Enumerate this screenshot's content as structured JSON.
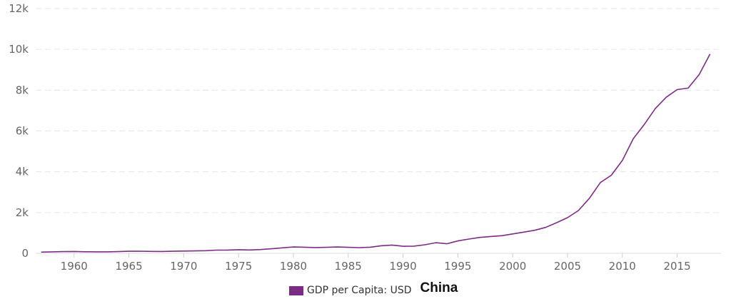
{
  "chart_data": {
    "type": "line",
    "title": "",
    "xlabel": "",
    "ylabel": "",
    "xlim": [
      1956.5,
      2019
    ],
    "ylim": [
      0,
      12000
    ],
    "x_ticks": [
      1960,
      1965,
      1970,
      1975,
      1980,
      1985,
      1990,
      1995,
      2000,
      2005,
      2010,
      2015
    ],
    "y_ticks": [
      {
        "value": 0,
        "label": "0"
      },
      {
        "value": 2000,
        "label": "2k"
      },
      {
        "value": 4000,
        "label": "4k"
      },
      {
        "value": 6000,
        "label": "6k"
      },
      {
        "value": 8000,
        "label": "8k"
      },
      {
        "value": 10000,
        "label": "10k"
      },
      {
        "value": 12000,
        "label": "12k"
      }
    ],
    "grid": "horizontal dashed",
    "legend_position": "bottom",
    "series": [
      {
        "name": "GDP per Capita: USD",
        "color": "#7b2d83",
        "x": [
          1957,
          1958,
          1959,
          1960,
          1961,
          1962,
          1963,
          1964,
          1965,
          1966,
          1967,
          1968,
          1969,
          1970,
          1971,
          1972,
          1973,
          1974,
          1975,
          1976,
          1977,
          1978,
          1979,
          1980,
          1981,
          1982,
          1983,
          1984,
          1985,
          1986,
          1987,
          1988,
          1989,
          1990,
          1991,
          1992,
          1993,
          1994,
          1995,
          1996,
          1997,
          1998,
          1999,
          2000,
          2001,
          2002,
          2003,
          2004,
          2005,
          2006,
          2007,
          2008,
          2009,
          2010,
          2011,
          2012,
          2013,
          2014,
          2015,
          2016,
          2017,
          2018
        ],
        "values": [
          60,
          75,
          85,
          90,
          78,
          72,
          74,
          85,
          100,
          105,
          95,
          90,
          100,
          112,
          118,
          130,
          156,
          160,
          178,
          165,
          185,
          225,
          270,
          310,
          300,
          285,
          295,
          310,
          295,
          280,
          300,
          370,
          405,
          345,
          355,
          420,
          520,
          470,
          610,
          700,
          780,
          825,
          865,
          950,
          1040,
          1130,
          1270,
          1500,
          1750,
          2100,
          2700,
          3470,
          3830,
          4550,
          5620,
          6320,
          7090,
          7650,
          8030,
          8100,
          8760,
          9770
        ]
      }
    ]
  },
  "legend": {
    "label": "GDP per Capita: USD",
    "color": "#7b2d83",
    "country": "China"
  }
}
